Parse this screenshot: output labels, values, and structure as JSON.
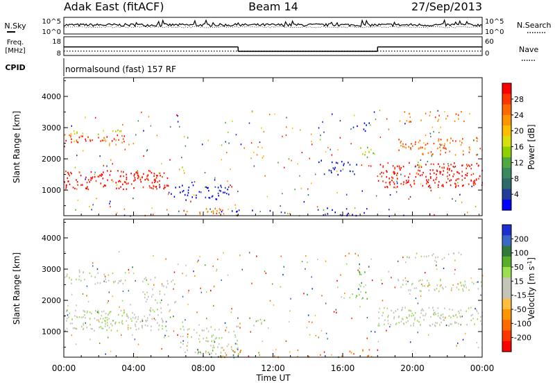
{
  "header": {
    "station": "Adak East (fitACF)",
    "beam": "Beam 14",
    "date": "27/Sep/2013"
  },
  "strip_labels": {
    "nsky": "N.Sky",
    "freq": "Freq.",
    "freq_unit": "[MHz]",
    "cpid": "CPID",
    "nsearch": "N.Search",
    "nave": "Nave"
  },
  "cpid_text": "normalsound (fast) 157 RF",
  "chart_data": [
    {
      "type": "line",
      "name": "noise-strip",
      "y_tick_labels_left": [
        "10^5",
        "10^0"
      ],
      "y_tick_labels_right": [
        "10^5",
        "10^0"
      ],
      "x_range_hours": [
        0,
        24
      ]
    },
    {
      "type": "line",
      "name": "freq-nave-strip",
      "y_tick_labels_left": [
        "18",
        "8"
      ],
      "y_tick_labels_right": [
        "60",
        "0"
      ],
      "freq_segments": [
        {
          "x": [
            0,
            10
          ],
          "y": 12.6
        },
        {
          "x": [
            10,
            18
          ],
          "y": 10.2
        },
        {
          "x": [
            18,
            24
          ],
          "y": 12.6
        }
      ],
      "nave_level": 0.2
    },
    {
      "type": "heatmap",
      "name": "power-panel",
      "ylabel": "Slant Range [km]",
      "yticks": [
        1000,
        2000,
        3000,
        4000
      ],
      "ylim": [
        180,
        4600
      ],
      "colorbar": {
        "label": "Power [dB]",
        "ticks": [
          "28",
          "24",
          "20",
          "16",
          "12",
          "8",
          "4"
        ],
        "colors": [
          "#ff0000",
          "#ff3500",
          "#ff6a00",
          "#ff9500",
          "#ffbd00",
          "#d8df10",
          "#8fd000",
          "#4fa840",
          "#3a8a60",
          "#2f6a6a",
          "#223c9a",
          "#0000ff"
        ]
      },
      "bands": [
        {
          "t0": 0.0,
          "t1": 6.0,
          "r0": 1050,
          "r1": 1650,
          "c": 0,
          "d": 0.9
        },
        {
          "t0": 0.0,
          "t1": 3.5,
          "r0": 2550,
          "r1": 2800,
          "c": 1,
          "d": 0.8
        },
        {
          "t0": 0.0,
          "t1": 3.5,
          "r0": 2800,
          "r1": 2950,
          "c": 5,
          "d": 0.6
        },
        {
          "t0": 2.0,
          "t1": 4.0,
          "r0": 2450,
          "r1": 2650,
          "c": 4,
          "d": 0.5
        },
        {
          "t0": 6.0,
          "t1": 9.5,
          "r0": 700,
          "r1": 1200,
          "c": 11,
          "d": 0.55
        },
        {
          "t0": 6.5,
          "t1": 9.0,
          "r0": 250,
          "r1": 450,
          "c": 2,
          "d": 0.7
        },
        {
          "t0": 9.0,
          "t1": 17.5,
          "r0": 200,
          "r1": 450,
          "c": 11,
          "d": 0.25
        },
        {
          "t0": 14.5,
          "t1": 17.0,
          "r0": 1500,
          "r1": 2000,
          "c": 11,
          "d": 0.4
        },
        {
          "t0": 16.8,
          "t1": 17.9,
          "r0": 2000,
          "r1": 2400,
          "c": 6,
          "d": 0.5
        },
        {
          "t0": 16.5,
          "t1": 17.5,
          "r0": 2800,
          "r1": 3200,
          "c": 11,
          "d": 0.4
        },
        {
          "t0": 18.0,
          "t1": 24.0,
          "r0": 1100,
          "r1": 1900,
          "c": 0,
          "d": 0.85
        },
        {
          "t0": 19.0,
          "t1": 24.0,
          "r0": 2150,
          "r1": 2700,
          "c": 2,
          "d": 0.6
        },
        {
          "t0": 19.5,
          "t1": 23.0,
          "r0": 3200,
          "r1": 3550,
          "c": 2,
          "d": 0.4
        }
      ]
    },
    {
      "type": "heatmap",
      "name": "velocity-panel",
      "ylabel": "Slant Range [km]",
      "yticks": [
        1000,
        2000,
        3000,
        4000
      ],
      "ylim": [
        180,
        4600
      ],
      "colorbar": {
        "label": "Velocity [m s",
        "label_sup": "-1",
        "label_end": "]",
        "ticks": [
          "200",
          "100",
          "50",
          "15",
          "-15",
          "-50",
          "-100",
          "-200"
        ],
        "colors": [
          "#1e2fd0",
          "#3a68c8",
          "#2f7a3a",
          "#58b02a",
          "#9ae050",
          "#c4c4b8",
          "#c4c4b8",
          "#ffbd40",
          "#ff9500",
          "#ff6a00",
          "#ff3500",
          "#ff0000"
        ]
      },
      "bands": [
        {
          "t0": 0.0,
          "t1": 6.0,
          "r0": 1050,
          "r1": 1700,
          "c": 5,
          "d": 0.85
        },
        {
          "t0": 0.0,
          "t1": 3.5,
          "r0": 2550,
          "r1": 2950,
          "c": 5,
          "d": 0.6
        },
        {
          "t0": 4.5,
          "t1": 6.5,
          "r0": 1700,
          "r1": 2800,
          "c": 5,
          "d": 0.4
        },
        {
          "t0": 6.5,
          "t1": 10.0,
          "r0": 300,
          "r1": 1200,
          "c": 5,
          "d": 0.5
        },
        {
          "t0": 7.0,
          "t1": 10.0,
          "r0": 200,
          "r1": 450,
          "c": 3,
          "d": 0.5
        },
        {
          "t0": 10.5,
          "t1": 11.5,
          "r0": 1200,
          "r1": 1500,
          "c": 4,
          "d": 0.6
        },
        {
          "t0": 9.0,
          "t1": 17.5,
          "r0": 200,
          "r1": 450,
          "c": 8,
          "d": 0.25
        },
        {
          "t0": 16.5,
          "t1": 17.5,
          "r0": 2000,
          "r1": 2500,
          "c": 4,
          "d": 0.5
        },
        {
          "t0": 16.5,
          "t1": 17.5,
          "r0": 2800,
          "r1": 3200,
          "c": 3,
          "d": 0.4
        },
        {
          "t0": 18.0,
          "t1": 24.0,
          "r0": 1200,
          "r1": 1800,
          "c": 5,
          "d": 0.85
        },
        {
          "t0": 19.0,
          "t1": 24.0,
          "r0": 2300,
          "r1": 2700,
          "c": 5,
          "d": 0.6
        },
        {
          "t0": 19.5,
          "t1": 23.0,
          "r0": 3200,
          "r1": 3550,
          "c": 5,
          "d": 0.4
        }
      ]
    }
  ],
  "x_axis": {
    "label": "Time UT",
    "ticks": [
      "00:00",
      "04:00",
      "08:00",
      "12:00",
      "16:00",
      "20:00",
      "00:00"
    ]
  }
}
